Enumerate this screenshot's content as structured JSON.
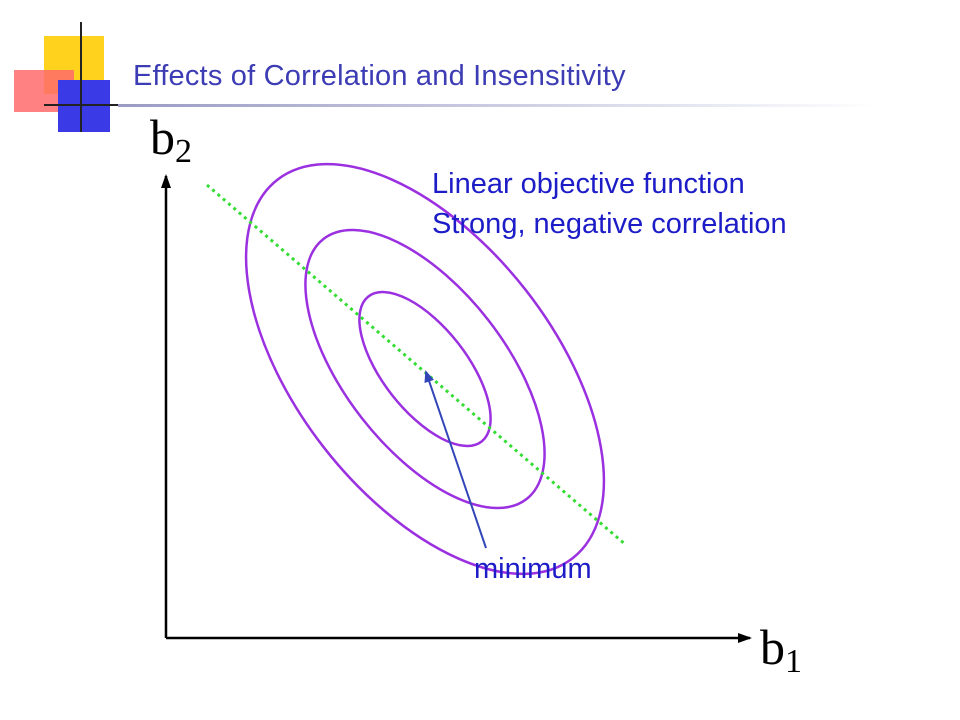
{
  "slide": {
    "title": "Effects of Correlation and Insensitivity",
    "y_axis_label": "b",
    "y_axis_subscript": "2",
    "x_axis_label": "b",
    "x_axis_subscript": "1",
    "annotation_line1": "Linear objective function",
    "annotation_line2": "Strong, negative correlation",
    "minimum_label": "minimum"
  },
  "colors": {
    "title": "#3c3cb4",
    "contours": "#9b30e0",
    "dotted_line": "#33dd33",
    "arrow": "#3346b8",
    "annotation_text": "#1d1dc8"
  },
  "decor_squares": {
    "yellow": "#ffd21e",
    "red": "#ff5a5a",
    "blue": "#3a3ae6"
  }
}
